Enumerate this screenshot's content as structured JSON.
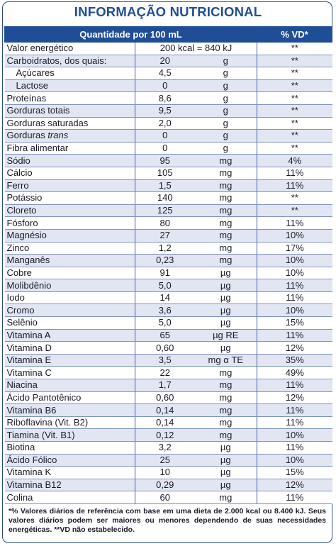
{
  "title": "INFORMAÇÃO NUTRICIONAL",
  "header": {
    "quantity_label": "Quantidade por 100 mL",
    "vd_label": "% VD*"
  },
  "energy_row": {
    "name": "Valor energético",
    "value": "200 kcal = 840 kJ",
    "vd": "**"
  },
  "rows": [
    {
      "name": "Carboidratos, dos quais:",
      "value": "20",
      "unit": "g",
      "vd": "**",
      "sub": false
    },
    {
      "name": "Açúcares",
      "value": "4,5",
      "unit": "g",
      "vd": "**",
      "sub": true
    },
    {
      "name": "Lactose",
      "value": "0",
      "unit": "g",
      "vd": "**",
      "sub": true
    },
    {
      "name": "Proteínas",
      "value": "8,6",
      "unit": "g",
      "vd": "**",
      "sub": false
    },
    {
      "name": "Gorduras totais",
      "value": "9,5",
      "unit": "g",
      "vd": "**",
      "sub": false
    },
    {
      "name": "Gorduras saturadas",
      "value": "2,0",
      "unit": "g",
      "vd": "**",
      "sub": false
    },
    {
      "name": "Gorduras trans",
      "value": "0",
      "unit": "g",
      "vd": "**",
      "sub": false
    },
    {
      "name": "Fibra alimentar",
      "value": "0",
      "unit": "g",
      "vd": "**",
      "sub": false
    },
    {
      "name": "Sódio",
      "value": "95",
      "unit": "mg",
      "vd": "4%",
      "sub": false
    },
    {
      "name": "Cálcio",
      "value": "105",
      "unit": "mg",
      "vd": "11%",
      "sub": false
    },
    {
      "name": "Ferro",
      "value": "1,5",
      "unit": "mg",
      "vd": "11%",
      "sub": false
    },
    {
      "name": "Potássio",
      "value": "140",
      "unit": "mg",
      "vd": "**",
      "sub": false
    },
    {
      "name": "Cloreto",
      "value": "125",
      "unit": "mg",
      "vd": "**",
      "sub": false
    },
    {
      "name": "Fósforo",
      "value": "80",
      "unit": "mg",
      "vd": "11%",
      "sub": false
    },
    {
      "name": "Magnésio",
      "value": "27",
      "unit": "mg",
      "vd": "10%",
      "sub": false
    },
    {
      "name": "Zinco",
      "value": "1,2",
      "unit": "mg",
      "vd": "17%",
      "sub": false
    },
    {
      "name": "Manganês",
      "value": "0,23",
      "unit": "mg",
      "vd": "10%",
      "sub": false
    },
    {
      "name": "Cobre",
      "value": "91",
      "unit": "µg",
      "vd": "10%",
      "sub": false
    },
    {
      "name": "Molibdênio",
      "value": "5,0",
      "unit": "µg",
      "vd": "11%",
      "sub": false
    },
    {
      "name": "Iodo",
      "value": "14",
      "unit": "µg",
      "vd": "11%",
      "sub": false
    },
    {
      "name": "Cromo",
      "value": "3,6",
      "unit": "µg",
      "vd": "10%",
      "sub": false
    },
    {
      "name": "Selênio",
      "value": "5,0",
      "unit": "µg",
      "vd": "15%",
      "sub": false
    },
    {
      "name": "Vitamina A",
      "value": "65",
      "unit": "µg RE",
      "vd": "11%",
      "sub": false
    },
    {
      "name": "Vitamina D",
      "value": "0,60",
      "unit": "µg",
      "vd": "12%",
      "sub": false
    },
    {
      "name": "Vitamina E",
      "value": "3,5",
      "unit": "mg α TE",
      "vd": "35%",
      "sub": false
    },
    {
      "name": "Vitamina C",
      "value": "22",
      "unit": "mg",
      "vd": "49%",
      "sub": false
    },
    {
      "name": "Niacina",
      "value": "1,7",
      "unit": "mg",
      "vd": "11%",
      "sub": false
    },
    {
      "name": "Ácido Pantotênico",
      "value": "0,60",
      "unit": "mg",
      "vd": "12%",
      "sub": false
    },
    {
      "name": "Vitamina B6",
      "value": "0,14",
      "unit": "mg",
      "vd": "11%",
      "sub": false
    },
    {
      "name": "Riboflavina (Vit. B2)",
      "value": "0,14",
      "unit": "mg",
      "vd": "11%",
      "sub": false
    },
    {
      "name": "Tiamina (Vit. B1)",
      "value": "0,12",
      "unit": "mg",
      "vd": "10%",
      "sub": false
    },
    {
      "name": "Biotina",
      "value": "3,2",
      "unit": "µg",
      "vd": "11%",
      "sub": false
    },
    {
      "name": "Ácido Fólico",
      "value": "25",
      "unit": "µg",
      "vd": "10%",
      "sub": false
    },
    {
      "name": "Vitamina K",
      "value": "10",
      "unit": "µg",
      "vd": "15%",
      "sub": false
    },
    {
      "name": "Vitamina B12",
      "value": "0,29",
      "unit": "µg",
      "vd": "12%",
      "sub": false
    },
    {
      "name": "Colina",
      "value": "60",
      "unit": "mg",
      "vd": "11%",
      "sub": false
    }
  ],
  "footnote": "*% Valores diários de referência com base em uma dieta de 2.000 kcal ou 8.400 kJ. Seus valores diários podem ser maiores ou menores dependendo de suas necessidades energéticas. **VD não estabelecido.",
  "colors": {
    "accent": "#1f4e96",
    "stripe": "#e1e6f2",
    "rule": "#7f93c2"
  }
}
